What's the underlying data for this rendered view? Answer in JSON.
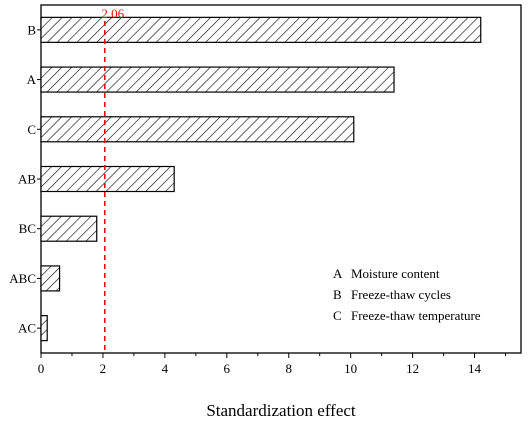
{
  "chart_data": {
    "type": "bar",
    "orientation": "horizontal",
    "categories": [
      "B",
      "A",
      "C",
      "AB",
      "BC",
      "ABC",
      "AC"
    ],
    "values": [
      14.2,
      11.4,
      10.1,
      4.3,
      1.8,
      0.6,
      0.2
    ],
    "xlabel": "Standardization effect",
    "ylabel": "",
    "xlim": [
      0,
      15.5
    ],
    "xticks": [
      0,
      2,
      4,
      6,
      8,
      10,
      12,
      14
    ],
    "xtick_labels": [
      "0",
      "2",
      "4",
      "6",
      "8",
      "10",
      "12",
      "14"
    ],
    "reference_line": {
      "value": 2.06,
      "label": "2.06",
      "style": "dashed",
      "color": "#e01010"
    },
    "bar_fill": "hatched",
    "legend": {
      "placement": "bottom-right",
      "entries": [
        {
          "key": "A",
          "text": "Moisture content"
        },
        {
          "key": "B",
          "text": "Freeze-thaw cycles"
        },
        {
          "key": "C",
          "text": "Freeze-thaw temperature"
        }
      ]
    },
    "grid": false
  }
}
